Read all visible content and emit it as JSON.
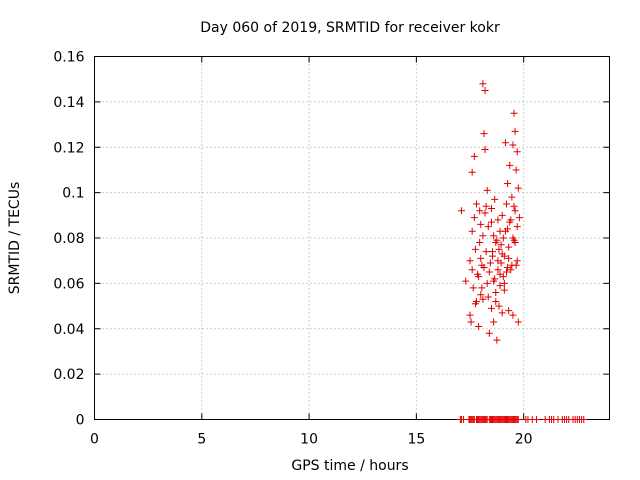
{
  "chart_data": {
    "type": "scatter",
    "title": "Day 060 of 2019, SRMTID for receiver kokr",
    "xlabel": "GPS time / hours",
    "ylabel": "SRMTID / TECUs",
    "xlim": [
      0,
      24
    ],
    "ylim": [
      0,
      0.16
    ],
    "grid": true,
    "marker": "+",
    "marker_color": "#e00000",
    "xticks": [
      0,
      5,
      10,
      15,
      20
    ],
    "xtick_labels": [
      "0",
      "5",
      "10",
      "15",
      "20"
    ],
    "yticks": [
      0,
      0.02,
      0.04,
      0.06,
      0.08,
      0.1,
      0.12,
      0.14,
      0.16
    ],
    "ytick_labels": [
      "0",
      "0.02",
      "0.04",
      "0.06",
      "0.08",
      "0.1",
      "0.12",
      "0.14",
      "0.16"
    ],
    "x": [
      17.05,
      17.1,
      17.2,
      17.45,
      17.5,
      17.55,
      17.6,
      17.65,
      17.7,
      17.8,
      17.85,
      17.9,
      17.95,
      18.0,
      18.05,
      18.1,
      18.15,
      18.2,
      18.25,
      18.3,
      18.4,
      18.45,
      18.5,
      18.55,
      18.6,
      18.65,
      18.7,
      18.75,
      18.8,
      18.85,
      18.9,
      18.95,
      19.0,
      19.05,
      19.1,
      19.15,
      19.2,
      19.25,
      19.3,
      19.35,
      19.4,
      19.45,
      19.5,
      19.55,
      19.6,
      19.65,
      19.7,
      19.75,
      20.1,
      20.2,
      20.4,
      20.6,
      21.0,
      21.2,
      21.3,
      21.4,
      21.6,
      21.8,
      21.9,
      22.0,
      22.1,
      22.3,
      22.4,
      22.5,
      22.6,
      22.7,
      22.8,
      17.1,
      17.3,
      17.5,
      17.5,
      17.55,
      17.6,
      17.6,
      17.65,
      17.7,
      17.75,
      17.8,
      17.8,
      17.85,
      17.9,
      17.95,
      17.95,
      18.0,
      18.0,
      18.05,
      18.1,
      18.1,
      18.15,
      18.2,
      18.2,
      18.2,
      18.25,
      18.3,
      18.3,
      18.35,
      18.4,
      18.45,
      18.5,
      18.5,
      18.55,
      18.6,
      18.6,
      18.65,
      18.65,
      18.7,
      18.7,
      18.75,
      18.8,
      18.8,
      18.85,
      18.85,
      18.9,
      18.9,
      18.95,
      19.0,
      19.0,
      19.05,
      19.05,
      19.1,
      19.1,
      19.15,
      19.2,
      19.2,
      19.25,
      19.25,
      19.3,
      19.3,
      19.35,
      19.35,
      19.4,
      19.45,
      19.5,
      19.5,
      19.55,
      19.55,
      19.6,
      19.6,
      19.65,
      19.65,
      19.7,
      19.7,
      19.75,
      19.75,
      19.8,
      17.6,
      17.7,
      17.75,
      17.9,
      18.0,
      18.05,
      18.1,
      18.15,
      18.25,
      18.35,
      18.4,
      18.5,
      18.55,
      18.6,
      18.7,
      18.75,
      18.8,
      18.9,
      18.95,
      19.0,
      19.1,
      19.15,
      19.25,
      19.3,
      19.4,
      19.45,
      19.5,
      19.55,
      19.6,
      19.7
    ],
    "y": [
      0,
      0,
      0,
      0,
      0,
      0,
      0,
      0,
      0,
      0,
      0,
      0,
      0,
      0,
      0,
      0,
      0,
      0,
      0,
      0,
      0,
      0,
      0,
      0,
      0,
      0,
      0,
      0,
      0,
      0,
      0,
      0,
      0,
      0,
      0,
      0,
      0,
      0,
      0,
      0,
      0,
      0,
      0,
      0,
      0,
      0,
      0,
      0,
      0,
      0,
      0,
      0,
      0,
      0,
      0,
      0,
      0,
      0,
      0,
      0,
      0,
      0,
      0,
      0,
      0,
      0,
      0,
      0.092,
      0.061,
      0.046,
      0.07,
      0.043,
      0.066,
      0.083,
      0.058,
      0.089,
      0.075,
      0.052,
      0.095,
      0.064,
      0.041,
      0.078,
      0.092,
      0.055,
      0.086,
      0.068,
      0.148,
      0.053,
      0.126,
      0.145,
      0.119,
      0.091,
      0.074,
      0.06,
      0.101,
      0.085,
      0.038,
      0.069,
      0.049,
      0.093,
      0.072,
      0.081,
      0.043,
      0.062,
      0.097,
      0.056,
      0.078,
      0.035,
      0.088,
      0.066,
      0.05,
      0.075,
      0.059,
      0.083,
      0.069,
      0.047,
      0.09,
      0.063,
      0.08,
      0.057,
      0.072,
      0.122,
      0.095,
      0.065,
      0.104,
      0.084,
      0.048,
      0.071,
      0.112,
      0.087,
      0.066,
      0.098,
      0.046,
      0.121,
      0.135,
      0.079,
      0.127,
      0.092,
      0.11,
      0.068,
      0.118,
      0.085,
      0.102,
      0.043,
      0.089,
      0.109,
      0.116,
      0.051,
      0.063,
      0.071,
      0.058,
      0.081,
      0.067,
      0.094,
      0.054,
      0.065,
      0.087,
      0.074,
      0.061,
      0.052,
      0.079,
      0.07,
      0.064,
      0.077,
      0.073,
      0.06,
      0.083,
      0.067,
      0.076,
      0.088,
      0.068,
      0.08,
      0.094,
      0.078,
      0.07
    ]
  }
}
